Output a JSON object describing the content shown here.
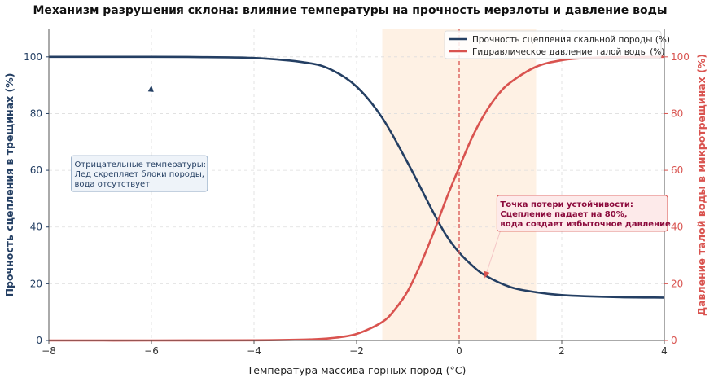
{
  "chart_data": {
    "type": "line",
    "title": "Механизм разрушения склона: влияние температуры на прочность мерзлоты и давление воды",
    "xlabel": "Температура массива горных пород (°C)",
    "ylabel_left": "Прочность сцепления в трещинах (%)",
    "ylabel_right": "Давление талой воды в микротрещинах (%)",
    "xlim": [
      -8,
      4
    ],
    "ylim_left": [
      0,
      110
    ],
    "ylim_right": [
      0,
      110
    ],
    "x_ticks": [
      -8,
      -6,
      -4,
      -2,
      0,
      2,
      4
    ],
    "x_tick_labels": [
      "−8",
      "−6",
      "−4",
      "−2",
      "0",
      "2",
      "4"
    ],
    "y_ticks_left": [
      0,
      20,
      40,
      60,
      80,
      100
    ],
    "y_ticks_right": [
      0,
      20,
      40,
      60,
      80,
      100
    ],
    "grid": true,
    "legend_position": "top-right",
    "shaded_region": {
      "x": [
        -1.5,
        1.5
      ],
      "color": "#fdebd8"
    },
    "vertical_line": {
      "x": 0,
      "color": "#d9534f",
      "style": "dashed"
    },
    "series": [
      {
        "name": "Прочность сцепления скальной породы (%)",
        "axis": "left",
        "color": "#243f63",
        "x": [
          -8,
          -6,
          -5,
          -4,
          -3,
          -2.5,
          -2,
          -1.5,
          -1,
          -0.5,
          -0.25,
          0,
          0.25,
          0.5,
          1,
          1.5,
          2,
          3,
          4
        ],
        "values": [
          100,
          100,
          99.9,
          99.6,
          98,
          95.5,
          89.5,
          78.5,
          62.5,
          45,
          37,
          31,
          26.5,
          23,
          18.8,
          17,
          16,
          15.3,
          15.1
        ]
      },
      {
        "name": "Гидравлическое давление талой воды (%)",
        "axis": "right",
        "color": "#d9534f",
        "x": [
          -8,
          -6,
          -4,
          -3,
          -2.5,
          -2,
          -1.5,
          -1.25,
          -1,
          -0.75,
          -0.5,
          -0.25,
          0,
          0.25,
          0.5,
          0.75,
          1,
          1.5,
          2,
          2.5,
          3,
          4
        ],
        "values": [
          0,
          0,
          0.05,
          0.3,
          0.8,
          2.3,
          6.5,
          11,
          17.5,
          27,
          38,
          50,
          61,
          71.5,
          80,
          86.5,
          91,
          96.5,
          98.8,
          99.6,
          99.9,
          100
        ]
      }
    ],
    "annotations": [
      {
        "id": "cold",
        "lines": [
          "Отрицательные температуры:",
          "Лед скрепляет блоки породы,",
          "вода отсутствует"
        ],
        "arrow_to": {
          "x": -6,
          "y": 90
        },
        "text_at": {
          "x": -7.5,
          "y": 64
        },
        "text_color": "#243f63",
        "box_fill": "#eef3f9",
        "box_stroke": "#9fb4cc"
      },
      {
        "id": "failure",
        "lines": [
          "Точка потери устойчивости:",
          "Сцепление падает на 80%,",
          "вода создает избыточное давление"
        ],
        "arrow_to": {
          "x": 0.5,
          "y": 22
        },
        "text_at": {
          "x": 0.8,
          "y": 50
        },
        "text_color": "#8b0a3c",
        "box_fill": "#fdeaea",
        "box_stroke": "#d9534f"
      }
    ]
  }
}
